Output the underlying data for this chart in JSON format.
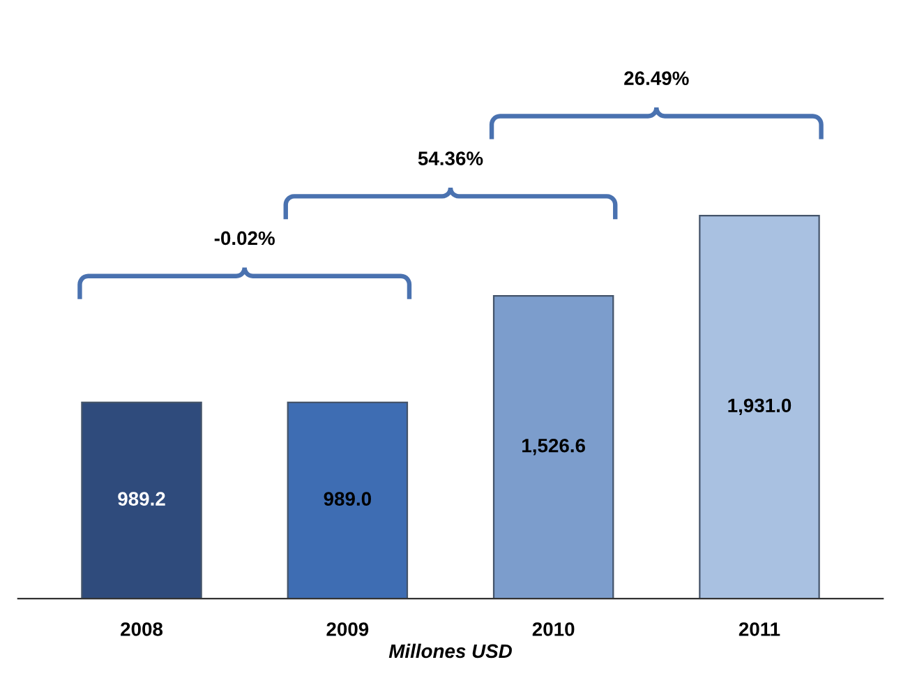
{
  "chart_data": {
    "type": "bar",
    "xlabel": "Millones USD",
    "categories": [
      "2008",
      "2009",
      "2010",
      "2011"
    ],
    "values": [
      989.2,
      989.0,
      1526.6,
      1931.0
    ],
    "colors": [
      "#2f4b7c",
      "#3e6db3",
      "#7c9dcc",
      "#a9c1e1"
    ],
    "value_labels": [
      "989.2",
      "989.0",
      "1,526.6",
      "1,931.0"
    ],
    "annotations": [
      "-0.02%",
      "54.36%",
      "26.49%"
    ],
    "tick_labels": "x",
    "grid": false
  }
}
